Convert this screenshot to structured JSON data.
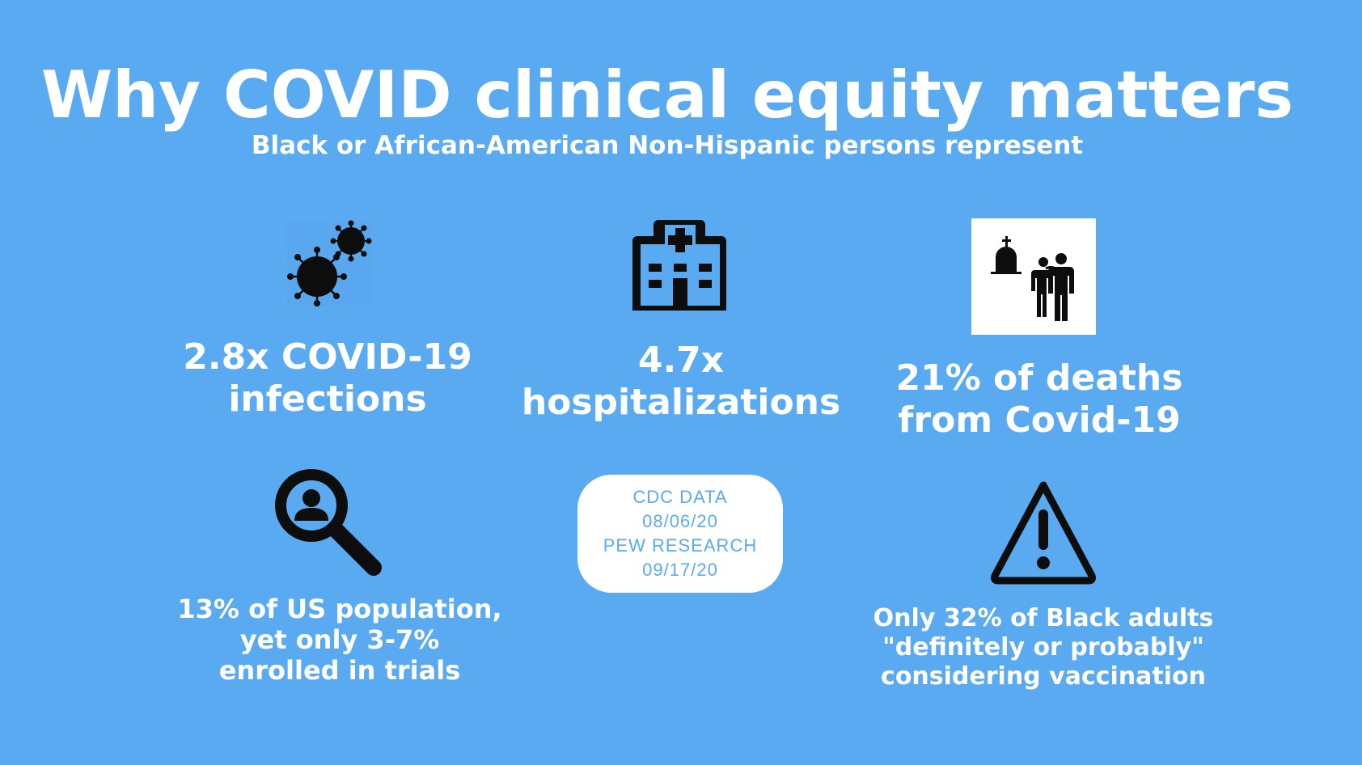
{
  "slide": {
    "title": "Why COVID clinical equity matters",
    "subtitle": "Black or African-American Non-Hispanic persons represent"
  },
  "stats": {
    "infections": {
      "line1": "2.8x COVID-19",
      "line2": "infections",
      "icon": "virus-icon"
    },
    "hospitalizations": {
      "line1": "4.7x",
      "line2": "hospitalizations",
      "icon": "hospital-icon"
    },
    "deaths": {
      "line1": "21% of deaths",
      "line2": "from Covid-19",
      "icon": "grieving-family-icon"
    },
    "trials": {
      "line1": "13% of US population,",
      "line2": "yet only 3-7%",
      "line3": "enrolled in trials",
      "icon": "person-search-icon"
    },
    "vaccination": {
      "line1": "Only 32% of Black adults",
      "line2": "\"definitely or probably\"",
      "line3": "considering vaccination",
      "icon": "warning-icon"
    }
  },
  "sources": {
    "line1": "CDC DATA",
    "line2": "08/06/20",
    "line3": "PEW RESEARCH",
    "line4": "09/17/20"
  },
  "colors": {
    "background": "#5aaaf2",
    "text": "#ffffff",
    "icon": "#0d0d0d"
  }
}
